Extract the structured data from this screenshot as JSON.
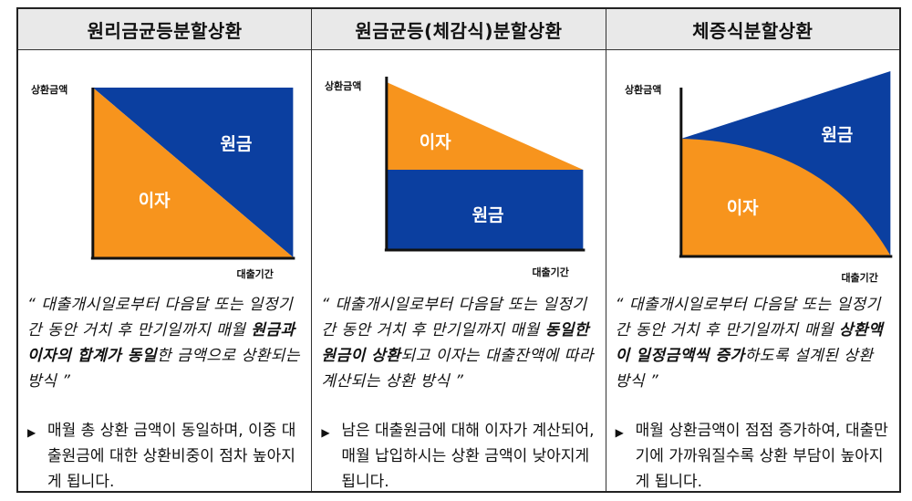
{
  "columns": [
    {
      "title": "원리금균등분할상환",
      "y_label": "상환금액",
      "x_label": "대출기간",
      "interest_label": "이자",
      "principal_label": "원금",
      "quote": {
        "open": "“ 대출개시일로부터 다음달 또는 일정기간 동안 거치 후 만기일까지 매월 ",
        "bold": "원금과 이자의 합계가 동일",
        "close": "한 금액으로 상환되는 방식 ”"
      },
      "note": "매월 총 상환 금액이 동일하며, 이중 대출원금에 대한 상환비중이 점차 높아지게 됩니다."
    },
    {
      "title": "원금균등(체감식)분할상환",
      "y_label": "상환금액",
      "x_label": "대출기간",
      "interest_label": "이자",
      "principal_label": "원금",
      "quote": {
        "open": "“ 대출개시일로부터 다음달 또는 일정기간 동안 거치 후 만기일까지 매월 ",
        "bold": "동일한 원금이 상환",
        "close": "되고 이자는 대출잔액에 따라 계산되는 상환 방식 ”"
      },
      "note": "남은 대출원금에 대해 이자가 계산되어, 매월 납입하시는 상환 금액이 낮아지게 됩니다."
    },
    {
      "title": "체증식분할상환",
      "y_label": "상환금액",
      "x_label": "대출기간",
      "interest_label": "이자",
      "principal_label": "원금",
      "quote": {
        "open": "“ 대출개시일로부터 다음달 또는 일정기간 동안 거치 후 만기일까지 매월 ",
        "bold": "상환액이 일정금액씩 증가",
        "close": "하도록 설계된 상환 방식 ”"
      },
      "note": "매월 상환금액이 점점 증가하여, 대출만기에 가까워질수록 상환 부담이 높아지게 됩니다."
    }
  ],
  "colors": {
    "interest": "#f7941d",
    "principal": "#0b3fa0",
    "header_bg": "#e9e9e9"
  },
  "icons": {
    "bullet": "triangle-right-icon"
  }
}
